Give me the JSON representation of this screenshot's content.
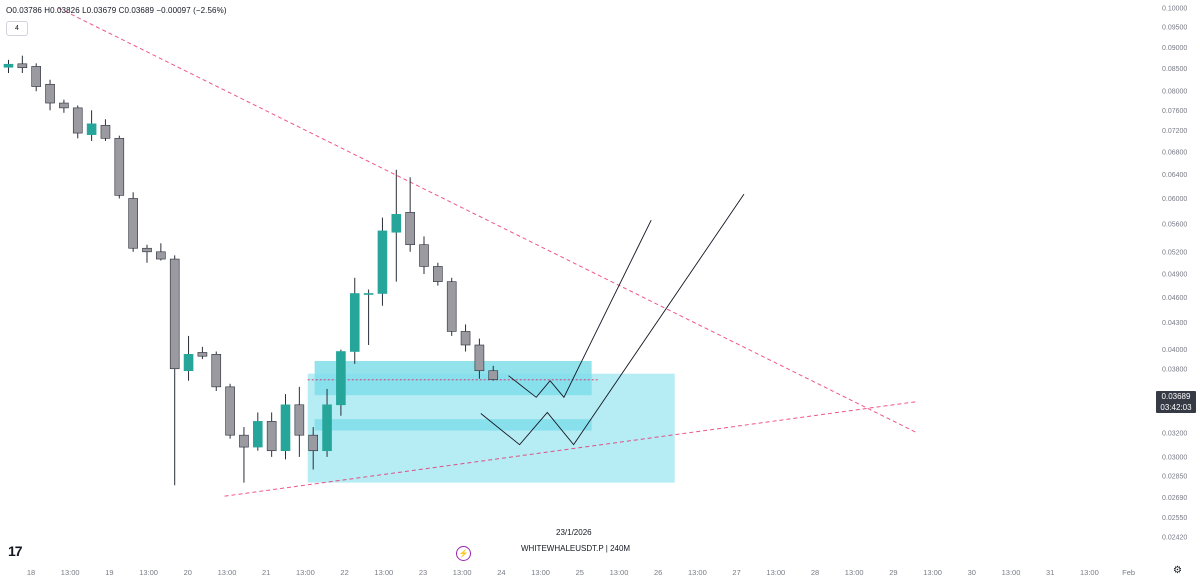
{
  "header": {
    "ohlc": "O0.03786 H0.03826 L0.03679 C0.03689 −0.00097 (−2.56%)",
    "interval_badge": "4"
  },
  "footer": {
    "date_label": "23/1/2026",
    "symbol_label": "WHITEWHALEUSDT.P",
    "timeframe_label": "240M",
    "logo": "17"
  },
  "last_price": {
    "price": "0.03689",
    "countdown": "03:42:03"
  },
  "colors": {
    "bull": "#26a69a",
    "bear": "#9a9aa0",
    "trendline": "#e91e63",
    "zone": "#b2ebf2",
    "zone_dark": "#80deea",
    "text": "#787b86"
  },
  "chart_data": {
    "type": "candlestick",
    "symbol": "WHITEWHALEUSDT.P",
    "timeframe": "240M",
    "y_axis": {
      "scale": "log",
      "ylim": [
        0.0242,
        0.1
      ],
      "ticks": [
        "0.10000",
        "0.09500",
        "0.09000",
        "0.08500",
        "0.08000",
        "0.07600",
        "0.07200",
        "0.06800",
        "0.06400",
        "0.06000",
        "0.05600",
        "0.05200",
        "0.04900",
        "0.04600",
        "0.04300",
        "0.04000",
        "0.03800",
        "0.03400",
        "0.03200",
        "0.03000",
        "0.02850",
        "0.02690",
        "0.02550",
        "0.02420"
      ]
    },
    "x_axis": {
      "ticks": [
        "18",
        "13:00",
        "19",
        "13:00",
        "20",
        "13:00",
        "21",
        "13:00",
        "22",
        "13:00",
        "23",
        "13:00",
        "24",
        "13:00",
        "25",
        "13:00",
        "26",
        "13:00",
        "27",
        "13:00",
        "28",
        "13:00",
        "29",
        "13:00",
        "30",
        "13:00",
        "31",
        "13:00",
        "Feb"
      ]
    },
    "candles": [
      {
        "o": 0.0853,
        "h": 0.087,
        "l": 0.084,
        "c": 0.086
      },
      {
        "o": 0.0861,
        "h": 0.088,
        "l": 0.084,
        "c": 0.0852
      },
      {
        "o": 0.0855,
        "h": 0.0862,
        "l": 0.08,
        "c": 0.081
      },
      {
        "o": 0.0815,
        "h": 0.0825,
        "l": 0.076,
        "c": 0.0775
      },
      {
        "o": 0.0775,
        "h": 0.0782,
        "l": 0.0755,
        "c": 0.0765
      },
      {
        "o": 0.0765,
        "h": 0.077,
        "l": 0.0705,
        "c": 0.0715
      },
      {
        "o": 0.0712,
        "h": 0.076,
        "l": 0.07,
        "c": 0.0733
      },
      {
        "o": 0.073,
        "h": 0.0742,
        "l": 0.07,
        "c": 0.0705
      },
      {
        "o": 0.0705,
        "h": 0.071,
        "l": 0.06,
        "c": 0.0605
      },
      {
        "o": 0.06,
        "h": 0.061,
        "l": 0.052,
        "c": 0.0525
      },
      {
        "o": 0.0525,
        "h": 0.053,
        "l": 0.0505,
        "c": 0.052
      },
      {
        "o": 0.052,
        "h": 0.0532,
        "l": 0.0508,
        "c": 0.051
      },
      {
        "o": 0.051,
        "h": 0.0515,
        "l": 0.0278,
        "c": 0.038
      },
      {
        "o": 0.0378,
        "h": 0.0415,
        "l": 0.0368,
        "c": 0.0395
      },
      {
        "o": 0.0397,
        "h": 0.0403,
        "l": 0.039,
        "c": 0.0393
      },
      {
        "o": 0.0395,
        "h": 0.0398,
        "l": 0.0358,
        "c": 0.0362
      },
      {
        "o": 0.0362,
        "h": 0.0365,
        "l": 0.0315,
        "c": 0.0318
      },
      {
        "o": 0.0318,
        "h": 0.0325,
        "l": 0.028,
        "c": 0.0308
      },
      {
        "o": 0.0308,
        "h": 0.0338,
        "l": 0.0305,
        "c": 0.033
      },
      {
        "o": 0.033,
        "h": 0.0338,
        "l": 0.03,
        "c": 0.0305
      },
      {
        "o": 0.0305,
        "h": 0.0355,
        "l": 0.0298,
        "c": 0.0345
      },
      {
        "o": 0.0345,
        "h": 0.0362,
        "l": 0.03,
        "c": 0.0318
      },
      {
        "o": 0.0318,
        "h": 0.0325,
        "l": 0.029,
        "c": 0.0305
      },
      {
        "o": 0.0305,
        "h": 0.036,
        "l": 0.03,
        "c": 0.0345
      },
      {
        "o": 0.0345,
        "h": 0.04,
        "l": 0.0335,
        "c": 0.0398
      },
      {
        "o": 0.0398,
        "h": 0.0485,
        "l": 0.0385,
        "c": 0.0465
      },
      {
        "o": 0.0465,
        "h": 0.047,
        "l": 0.0405,
        "c": 0.0465
      },
      {
        "o": 0.0465,
        "h": 0.057,
        "l": 0.045,
        "c": 0.055
      },
      {
        "o": 0.0548,
        "h": 0.0648,
        "l": 0.048,
        "c": 0.0575
      },
      {
        "o": 0.0578,
        "h": 0.0635,
        "l": 0.052,
        "c": 0.053
      },
      {
        "o": 0.053,
        "h": 0.0542,
        "l": 0.049,
        "c": 0.05
      },
      {
        "o": 0.05,
        "h": 0.0505,
        "l": 0.0475,
        "c": 0.048
      },
      {
        "o": 0.048,
        "h": 0.0485,
        "l": 0.0415,
        "c": 0.042
      },
      {
        "o": 0.042,
        "h": 0.0428,
        "l": 0.0398,
        "c": 0.0405
      },
      {
        "o": 0.0405,
        "h": 0.0412,
        "l": 0.037,
        "c": 0.0378
      },
      {
        "o": 0.0378,
        "h": 0.0383,
        "l": 0.0368,
        "c": 0.0369
      }
    ],
    "trendlines": [
      {
        "style": "dashed",
        "from": {
          "i": 4,
          "y": 0.1
        },
        "to": {
          "i": 66,
          "y": 0.032
        }
      },
      {
        "style": "dashed",
        "from": {
          "i": 16,
          "y": 0.027
        },
        "to": {
          "i": 66,
          "y": 0.0348
        }
      }
    ],
    "current_price_line": {
      "y": 0.03689,
      "style": "dotted"
    },
    "zones": [
      {
        "from_i": 22,
        "to_i": 48.5,
        "y_top": 0.0375,
        "y_bottom": 0.028
      },
      {
        "from_i": 22.5,
        "to_i": 42.5,
        "y_top": 0.0388,
        "y_bottom": 0.0354
      },
      {
        "from_i": 22.5,
        "to_i": 42.5,
        "y_top": 0.0332,
        "y_bottom": 0.0322
      }
    ],
    "projection_paths": [
      [
        {
          "i": 36.5,
          "y": 0.0373
        },
        {
          "i": 38.5,
          "y": 0.0352
        },
        {
          "i": 39.5,
          "y": 0.0368
        },
        {
          "i": 40.5,
          "y": 0.0352
        },
        {
          "i": 46.8,
          "y": 0.0566
        }
      ],
      [
        {
          "i": 34.5,
          "y": 0.0337
        },
        {
          "i": 37.3,
          "y": 0.031
        },
        {
          "i": 39.3,
          "y": 0.0338
        },
        {
          "i": 41.2,
          "y": 0.031
        },
        {
          "i": 53.5,
          "y": 0.0607
        }
      ]
    ]
  }
}
